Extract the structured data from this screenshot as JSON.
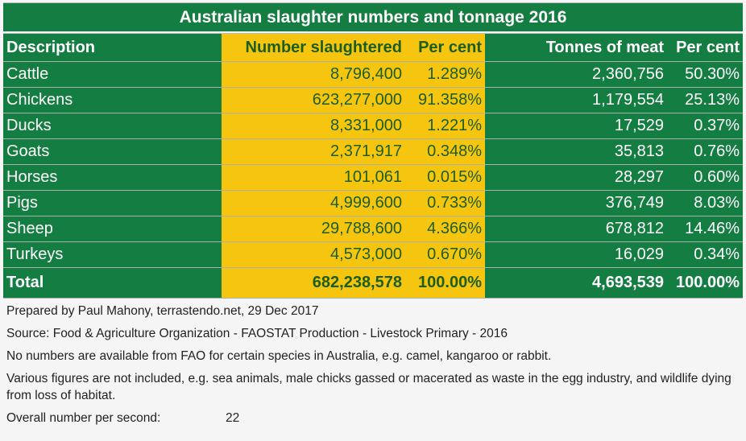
{
  "title": "Australian slaughter numbers and tonnage 2016",
  "headers": [
    "Description",
    "Number slaughtered",
    "Per cent",
    "Tonnes of meat",
    "Per cent"
  ],
  "rows": [
    {
      "desc": "Cattle",
      "number": "8,796,400",
      "num_pct": "1.289%",
      "tonnes": "2,360,756",
      "ton_pct": "50.30%"
    },
    {
      "desc": "Chickens",
      "number": "623,277,000",
      "num_pct": "91.358%",
      "tonnes": "1,179,554",
      "ton_pct": "25.13%"
    },
    {
      "desc": "Ducks",
      "number": "8,331,000",
      "num_pct": "1.221%",
      "tonnes": "17,529",
      "ton_pct": "0.37%"
    },
    {
      "desc": "Goats",
      "number": "2,371,917",
      "num_pct": "0.348%",
      "tonnes": "35,813",
      "ton_pct": "0.76%"
    },
    {
      "desc": "Horses",
      "number": "101,061",
      "num_pct": "0.015%",
      "tonnes": "28,297",
      "ton_pct": "0.60%"
    },
    {
      "desc": "Pigs",
      "number": "4,999,600",
      "num_pct": "0.733%",
      "tonnes": "376,749",
      "ton_pct": "8.03%"
    },
    {
      "desc": "Sheep",
      "number": "29,788,600",
      "num_pct": "4.366%",
      "tonnes": "678,812",
      "ton_pct": "14.46%"
    },
    {
      "desc": "Turkeys",
      "number": "4,573,000",
      "num_pct": "0.670%",
      "tonnes": "16,029",
      "ton_pct": "0.34%"
    }
  ],
  "total": {
    "desc": "Total",
    "number": "682,238,578",
    "num_pct": "100.00%",
    "tonnes": "4,693,539",
    "ton_pct": "100.00%"
  },
  "notes": [
    "Prepared by Paul Mahony, terrastendo.net, 29 Dec 2017",
    "Source: Food & Agriculture Organization - FAOSTAT Production - Livestock Primary - 2016",
    "No numbers are available from FAO for certain species in Australia, e.g. camel, kangaroo or rabbit.",
    "Various figures are not included, e.g. sea animals, male chicks gassed or macerated as waste in the egg industry, and wildlife dying from loss of habitat."
  ],
  "rate": {
    "label": "Overall number per second:",
    "value": "22"
  },
  "colors": {
    "green": "#147d41",
    "yellow": "#f5c50f",
    "dark_text": "#1d5e0c"
  }
}
